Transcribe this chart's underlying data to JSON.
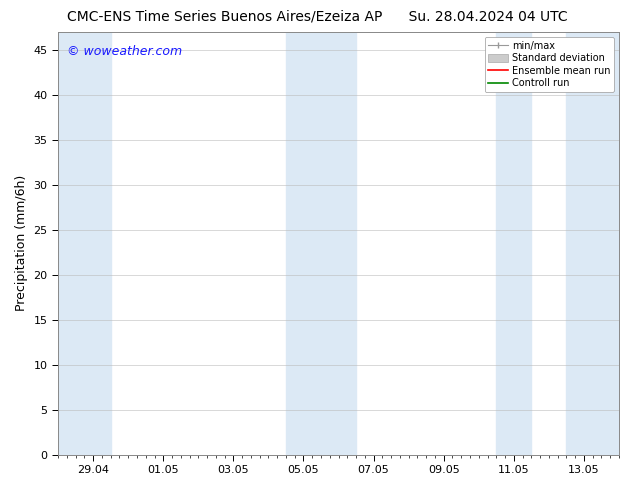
{
  "title_left": "CMC-ENS Time Series Buenos Aires/Ezeiza AP",
  "title_right": "Su. 28.04.2024 04 UTC",
  "ylabel": "Precipitation (mm/6h)",
  "watermark": "© woweather.com",
  "watermark_color": "#1a1aff",
  "background_color": "#ffffff",
  "plot_bg_color": "#ffffff",
  "ylim": [
    0,
    47
  ],
  "yticks": [
    0,
    5,
    10,
    15,
    20,
    25,
    30,
    35,
    40,
    45
  ],
  "xtick_labels": [
    "29.04",
    "01.05",
    "03.05",
    "05.05",
    "07.05",
    "09.05",
    "11.05",
    "13.05"
  ],
  "xtick_positions": [
    1,
    3,
    5,
    7,
    9,
    11,
    13,
    15
  ],
  "x_min": 0,
  "x_max": 16,
  "shaded_color": "#dce9f5",
  "shaded_regions": [
    [
      0.0,
      1.5
    ],
    [
      6.5,
      8.5
    ],
    [
      12.5,
      13.5
    ],
    [
      14.5,
      16.0
    ]
  ],
  "legend_labels": [
    "min/max",
    "Standard deviation",
    "Ensemble mean run",
    "Controll run"
  ],
  "title_fontsize": 10,
  "axis_label_fontsize": 9,
  "tick_fontsize": 8,
  "watermark_fontsize": 9
}
